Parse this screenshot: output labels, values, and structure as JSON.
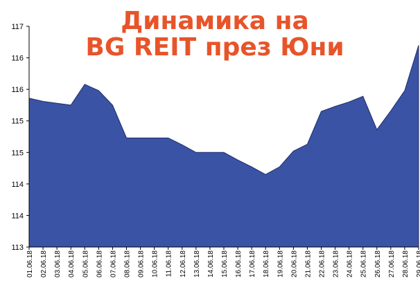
{
  "chart_data": {
    "type": "area",
    "title_lines": [
      "Динамика на",
      "BG REIT през Юни"
    ],
    "categories": [
      "01.06.18",
      "02.06.18",
      "03.06.18",
      "04.06.18",
      "05.06.18",
      "06.06.18",
      "07.06.18",
      "08.06.18",
      "09.06.18",
      "10.06.18",
      "11.06.18",
      "12.06.18",
      "13.06.18",
      "14.06.18",
      "15.06.18",
      "16.06.18",
      "17.06.18",
      "18.06.18",
      "19.06.18",
      "20.06.18",
      "21.06.18",
      "22.06.18",
      "23.06.18",
      "24.06.18",
      "25.06.18",
      "26.06.18",
      "27.06.18",
      "28.06.18",
      "29.06.18"
    ],
    "values": [
      115.36,
      115.31,
      115.28,
      115.25,
      115.58,
      115.48,
      115.25,
      114.73,
      114.73,
      114.73,
      114.73,
      114.62,
      114.5,
      114.5,
      114.5,
      114.38,
      114.27,
      114.15,
      114.27,
      114.52,
      114.63,
      115.15,
      115.23,
      115.3,
      115.39,
      114.86,
      115.16,
      115.48,
      116.2
    ],
    "color": "#3a53a4",
    "title_color": "#e8542a",
    "ylim": [
      113,
      116.5
    ],
    "yticks": [
      113,
      {
        "value": 113.5,
        "label": "114"
      },
      114,
      {
        "value": 114.5,
        "label": "115"
      },
      115,
      {
        "value": 115.5,
        "label": "116"
      },
      116,
      {
        "value": 116.5,
        "label": "117"
      }
    ],
    "grid": false
  }
}
